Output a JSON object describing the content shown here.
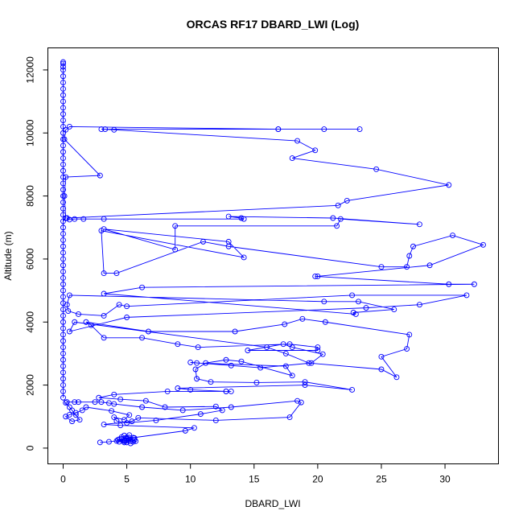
{
  "chart_data": {
    "type": "line",
    "title": "ORCAS RF17 DBARD_LWI (Log)",
    "xlabel": "DBARD_LWI",
    "ylabel": "Altitude (m)",
    "xlim": [
      -1.2,
      34.2
    ],
    "ylim": [
      -500,
      12700
    ],
    "xticks": [
      0,
      5,
      10,
      15,
      20,
      25,
      30
    ],
    "yticks": [
      0,
      2000,
      4000,
      6000,
      8000,
      10000,
      12000
    ],
    "grid": false,
    "legend": "none",
    "color": "#0000ff",
    "series": [
      {
        "markers": "open-circle",
        "points": [
          [
            2.9,
            180
          ],
          [
            3.6,
            200
          ],
          [
            4.2,
            230
          ],
          [
            4.8,
            250
          ],
          [
            5.3,
            230
          ],
          [
            5.0,
            180
          ],
          [
            4.4,
            200
          ],
          [
            5.6,
            260
          ],
          [
            5.0,
            300
          ],
          [
            4.4,
            280
          ],
          [
            5.5,
            200
          ],
          [
            4.8,
            220
          ],
          [
            5.2,
            330
          ],
          [
            4.6,
            300
          ],
          [
            5.6,
            320
          ],
          [
            4.3,
            260
          ],
          [
            4.8,
            180
          ],
          [
            5.3,
            150
          ],
          [
            5.7,
            220
          ],
          [
            4.6,
            350
          ],
          [
            5.2,
            410
          ],
          [
            4.8,
            400
          ],
          [
            5.5,
            330
          ],
          [
            9.6,
            550
          ],
          [
            10.3,
            640
          ],
          [
            4.5,
            720
          ],
          [
            3.2,
            750
          ],
          [
            5.4,
            850
          ],
          [
            5.9,
            960
          ],
          [
            12.0,
            880
          ],
          [
            17.8,
            980
          ],
          [
            18.7,
            1450
          ],
          [
            18.4,
            1500
          ],
          [
            13.2,
            1300
          ],
          [
            9.4,
            1200
          ],
          [
            6.2,
            1300
          ],
          [
            4.0,
            1400
          ],
          [
            3.6,
            1430
          ],
          [
            3.0,
            1460
          ],
          [
            2.5,
            1460
          ],
          [
            1.2,
            1460
          ],
          [
            0.9,
            1460
          ],
          [
            0.3,
            1460
          ],
          [
            0.2,
            1440
          ],
          [
            0.5,
            1300
          ],
          [
            0.7,
            1200
          ],
          [
            1.0,
            1050
          ],
          [
            1.3,
            900
          ],
          [
            0.7,
            850
          ],
          [
            0.2,
            1000
          ],
          [
            0.5,
            1060
          ],
          [
            1.0,
            1120
          ],
          [
            1.5,
            1200
          ],
          [
            1.8,
            1300
          ],
          [
            3.8,
            1180
          ],
          [
            5.2,
            1050
          ],
          [
            4.8,
            900
          ],
          [
            4.0,
            980
          ],
          [
            4.2,
            860
          ],
          [
            5.0,
            800
          ],
          [
            7.3,
            880
          ],
          [
            10.8,
            1080
          ],
          [
            12.5,
            1200
          ],
          [
            12.0,
            1320
          ],
          [
            8.0,
            1300
          ],
          [
            6.5,
            1500
          ],
          [
            4.5,
            1550
          ],
          [
            2.8,
            1600
          ],
          [
            4.0,
            1700
          ],
          [
            8.2,
            1800
          ],
          [
            12.8,
            1800
          ],
          [
            13.2,
            1800
          ],
          [
            12.8,
            1800
          ],
          [
            10.0,
            1850
          ],
          [
            9.0,
            1900
          ],
          [
            19.0,
            2000
          ],
          [
            22.7,
            1850
          ],
          [
            19.0,
            2100
          ],
          [
            15.2,
            2080
          ],
          [
            11.6,
            2100
          ],
          [
            10.5,
            2200
          ],
          [
            10.4,
            2500
          ],
          [
            11.2,
            2700
          ],
          [
            12.8,
            2800
          ],
          [
            14.0,
            2750
          ],
          [
            18.0,
            2300
          ],
          [
            17.5,
            2600
          ],
          [
            10.5,
            2700
          ],
          [
            10.0,
            2720
          ],
          [
            13.2,
            2620
          ],
          [
            15.5,
            2550
          ],
          [
            19.5,
            2700
          ],
          [
            20.4,
            2980
          ],
          [
            18.0,
            3200
          ],
          [
            17.3,
            3300
          ],
          [
            14.5,
            3100
          ],
          [
            20.0,
            3100
          ],
          [
            20.0,
            3200
          ],
          [
            17.8,
            3300
          ],
          [
            10.6,
            3200
          ],
          [
            9.0,
            3300
          ],
          [
            6.2,
            3500
          ],
          [
            3.2,
            3500
          ],
          [
            2.2,
            3900
          ],
          [
            1.8,
            4000
          ],
          [
            6.7,
            3700
          ],
          [
            13.5,
            3700
          ],
          [
            17.4,
            3930
          ],
          [
            18.8,
            4100
          ],
          [
            20.6,
            4000
          ],
          [
            27.2,
            3600
          ],
          [
            27.0,
            3150
          ],
          [
            25.0,
            2900
          ],
          [
            26.2,
            2250
          ],
          [
            25.0,
            2500
          ],
          [
            19.3,
            2700
          ],
          [
            17.5,
            3000
          ],
          [
            16.0,
            3200
          ],
          [
            0.9,
            4000
          ],
          [
            0.5,
            3700
          ],
          [
            5.0,
            4150
          ],
          [
            23.8,
            4450
          ],
          [
            28.0,
            4550
          ],
          [
            31.7,
            4850
          ],
          [
            22.7,
            4850
          ],
          [
            5.0,
            4500
          ],
          [
            4.4,
            4550
          ],
          [
            3.2,
            4200
          ],
          [
            1.2,
            4250
          ],
          [
            0.4,
            4350
          ],
          [
            0.3,
            4550
          ],
          [
            0.5,
            4850
          ],
          [
            20.5,
            4650
          ],
          [
            23.2,
            4650
          ],
          [
            26.0,
            4400
          ],
          [
            22.8,
            4300
          ],
          [
            23.0,
            4250
          ],
          [
            3.2,
            4900
          ],
          [
            6.2,
            5100
          ],
          [
            32.3,
            5200
          ],
          [
            30.3,
            5200
          ],
          [
            19.8,
            5450
          ],
          [
            20.0,
            5450
          ],
          [
            28.8,
            5800
          ],
          [
            33.0,
            6450
          ],
          [
            30.6,
            6750
          ],
          [
            27.5,
            6400
          ],
          [
            27.2,
            6100
          ],
          [
            27.0,
            5750
          ],
          [
            25.0,
            5750
          ],
          [
            13.0,
            6400
          ],
          [
            11.0,
            6550
          ],
          [
            4.2,
            5550
          ],
          [
            3.2,
            5550
          ],
          [
            3.0,
            6900
          ],
          [
            14.2,
            6050
          ],
          [
            13.0,
            6550
          ],
          [
            3.2,
            6950
          ],
          [
            8.8,
            6300
          ],
          [
            8.8,
            7050
          ],
          [
            21.5,
            7050
          ],
          [
            21.8,
            7270
          ],
          [
            28.0,
            7100
          ],
          [
            21.2,
            7300
          ],
          [
            13.0,
            7350
          ],
          [
            14.0,
            7300
          ],
          [
            14.2,
            7270
          ],
          [
            3.2,
            7270
          ],
          [
            1.6,
            7270
          ],
          [
            0.9,
            7270
          ],
          [
            0.5,
            7250
          ],
          [
            0.3,
            7300
          ],
          [
            21.6,
            7700
          ],
          [
            22.3,
            7850
          ],
          [
            30.3,
            8350
          ],
          [
            24.6,
            8850
          ],
          [
            18.0,
            9200
          ],
          [
            19.8,
            9450
          ],
          [
            18.4,
            9750
          ],
          [
            4.0,
            10100
          ],
          [
            3.0,
            10120
          ],
          [
            3.3,
            10120
          ],
          [
            16.9,
            10120
          ],
          [
            20.5,
            10120
          ],
          [
            23.3,
            10120
          ],
          [
            16.9,
            10120
          ],
          [
            0.5,
            10200
          ],
          [
            0.2,
            10100
          ],
          [
            0.1,
            9800
          ],
          [
            2.9,
            8650
          ],
          [
            0.2,
            8600
          ],
          [
            0.1,
            8000
          ],
          [
            0.2,
            7300
          ],
          [
            0.0,
            7200
          ],
          [
            0.0,
            7000
          ],
          [
            0.0,
            6800
          ],
          [
            0.0,
            6600
          ],
          [
            0.0,
            6400
          ],
          [
            0.0,
            6200
          ],
          [
            0.0,
            6000
          ],
          [
            0.0,
            5800
          ],
          [
            0.0,
            5600
          ],
          [
            0.0,
            5400
          ],
          [
            0.0,
            5200
          ],
          [
            0.0,
            5000
          ],
          [
            0.0,
            4800
          ],
          [
            0.0,
            4600
          ],
          [
            0.0,
            4400
          ],
          [
            0.0,
            4200
          ],
          [
            0.0,
            4000
          ],
          [
            0.0,
            3800
          ],
          [
            0.0,
            3600
          ],
          [
            0.0,
            3400
          ],
          [
            0.0,
            3200
          ],
          [
            0.0,
            3000
          ],
          [
            0.0,
            2800
          ],
          [
            0.0,
            2600
          ],
          [
            0.0,
            2400
          ],
          [
            0.0,
            2200
          ],
          [
            0.0,
            2000
          ],
          [
            0.0,
            1800
          ],
          [
            0.0,
            1600
          ],
          [
            0.0,
            7400
          ],
          [
            0.0,
            7600
          ],
          [
            0.0,
            7800
          ],
          [
            0.0,
            8000
          ],
          [
            0.0,
            8200
          ],
          [
            0.0,
            8400
          ],
          [
            0.0,
            8600
          ],
          [
            0.0,
            8800
          ],
          [
            0.0,
            9000
          ],
          [
            0.0,
            9200
          ],
          [
            0.0,
            9400
          ],
          [
            0.0,
            9600
          ],
          [
            0.0,
            9800
          ],
          [
            0.0,
            10000
          ],
          [
            0.0,
            10200
          ],
          [
            0.0,
            10400
          ],
          [
            0.0,
            10600
          ],
          [
            0.0,
            10800
          ],
          [
            0.0,
            11000
          ],
          [
            0.0,
            11200
          ],
          [
            0.0,
            11400
          ],
          [
            0.0,
            11600
          ],
          [
            0.0,
            11800
          ],
          [
            0.0,
            12000
          ],
          [
            0.0,
            12100
          ],
          [
            0.0,
            12200
          ],
          [
            0.0,
            12250
          ]
        ]
      }
    ]
  }
}
